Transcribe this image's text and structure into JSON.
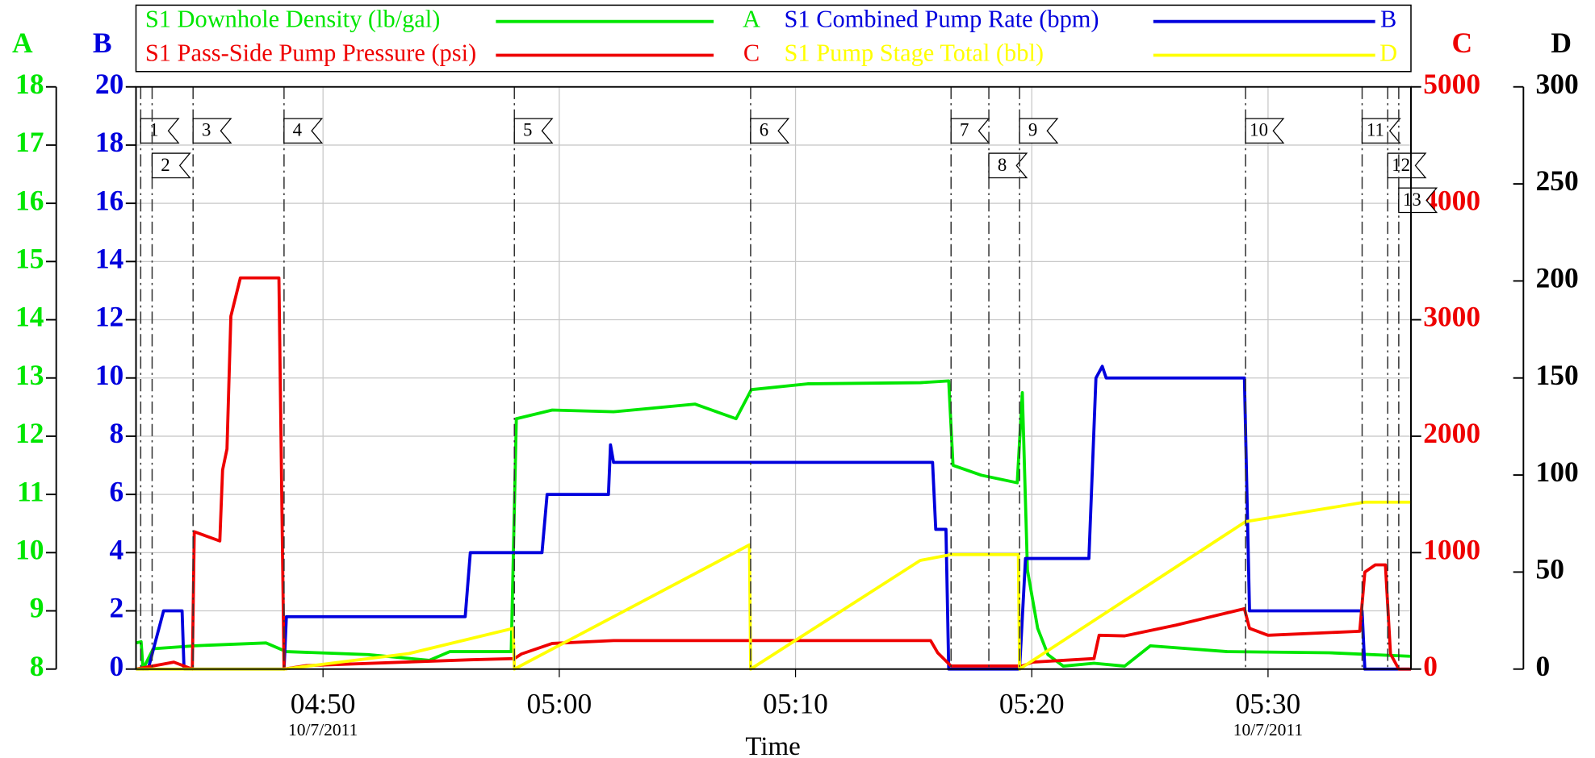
{
  "chart_data": {
    "type": "line",
    "xlabel": "Time",
    "xlim": [
      "04:42:05",
      "05:36:03"
    ],
    "xticks": [
      "04:50",
      "05:00",
      "05:10",
      "05:20",
      "05:30"
    ],
    "xtick_sublabels": [
      {
        "value": "04:50",
        "label": "10/7/2011"
      },
      {
        "value": "05:30",
        "label": "10/7/2011"
      }
    ],
    "grid": true,
    "axes": [
      {
        "name": "A",
        "color": "#00e600",
        "side": "left",
        "ylim": [
          8,
          18
        ],
        "yticks": [
          8,
          9,
          10,
          11,
          12,
          13,
          14,
          15,
          16,
          17,
          18
        ]
      },
      {
        "name": "B",
        "color": "#0000dd",
        "side": "left",
        "ylim": [
          0,
          20
        ],
        "yticks": [
          0,
          2,
          4,
          6,
          8,
          10,
          12,
          14,
          16,
          18,
          20
        ]
      },
      {
        "name": "C",
        "color": "#ee0000",
        "side": "right",
        "ylim": [
          0,
          5000
        ],
        "yticks": [
          0,
          1000,
          2000,
          3000,
          4000,
          5000
        ]
      },
      {
        "name": "D",
        "color": "#000000",
        "side": "right",
        "ylim": [
          0,
          300
        ],
        "yticks": [
          0,
          50,
          100,
          150,
          200,
          250,
          300
        ]
      }
    ],
    "series": [
      {
        "name": "S1 Downhole Density (lb/gal)",
        "color": "#00e600",
        "axis": "A",
        "x": [
          "04:42:05",
          "04:42:18",
          "04:42:23",
          "04:42:49",
          "04:44:33",
          "04:47:35",
          "04:48:27",
          "04:51:54",
          "04:54:30",
          "04:55:22",
          "04:57:58",
          "04:58:11",
          "04:59:42",
          "05:02:18",
          "05:05:45",
          "05:07:29",
          "05:08:08",
          "05:10:31",
          "05:15:17",
          "05:16:29",
          "05:16:40",
          "05:17:52",
          "05:19:23",
          "05:19:36",
          "05:19:49",
          "05:20:15",
          "05:20:41",
          "05:21:20",
          "05:22:38",
          "05:23:56",
          "05:25:01",
          "05:28:16",
          "05:32:35",
          "05:36:03"
        ],
        "values": [
          8.45,
          8.47,
          8.0,
          8.35,
          8.4,
          8.45,
          8.3,
          8.25,
          8.15,
          8.3,
          8.3,
          12.3,
          12.45,
          12.42,
          12.55,
          12.3,
          12.8,
          12.9,
          12.92,
          12.95,
          11.5,
          11.33,
          11.2,
          12.75,
          9.7,
          8.7,
          8.25,
          8.05,
          8.1,
          8.05,
          8.4,
          8.3,
          8.28,
          8.22
        ]
      },
      {
        "name": "S1 Combined Pump Rate (bpm)",
        "color": "#0000dd",
        "axis": "B",
        "x": [
          "04:42:05",
          "04:42:36",
          "04:43:15",
          "04:44:02",
          "04:44:07",
          "04:48:21",
          "04:48:27",
          "04:56:01",
          "04:56:14",
          "04:59:16",
          "04:59:29",
          "05:02:05",
          "05:02:10",
          "05:02:18",
          "05:15:48",
          "05:15:56",
          "05:16:22",
          "05:16:29",
          "05:19:29",
          "05:19:44",
          "05:22:25",
          "05:22:43",
          "05:22:59",
          "05:23:09",
          "05:29:00",
          "05:29:13",
          "05:33:59",
          "05:34:06",
          "05:36:03"
        ],
        "values": [
          0,
          0,
          2,
          2,
          0,
          0,
          1.8,
          1.8,
          4,
          4,
          6,
          6,
          7.7,
          7.1,
          7.1,
          4.8,
          4.8,
          0,
          0,
          3.8,
          3.8,
          10,
          10.4,
          10,
          10,
          2,
          2,
          0,
          0
        ]
      },
      {
        "name": "S1 Pass-Side Pump Pressure (psi)",
        "color": "#ee0000",
        "axis": "C",
        "x": [
          "04:42:05",
          "04:43:41",
          "04:44:28",
          "04:44:33",
          "04:45:38",
          "04:45:45",
          "04:45:56",
          "04:46:06",
          "04:46:30",
          "04:48:08",
          "04:48:21",
          "04:49:18",
          "04:56:14",
          "04:58:06",
          "04:58:24",
          "04:59:42",
          "05:02:18",
          "05:15:43",
          "05:16:01",
          "05:16:35",
          "05:19:36",
          "05:20:02",
          "05:22:38",
          "05:22:51",
          "05:23:56",
          "05:26:06",
          "05:29:00",
          "05:29:13",
          "05:30:00",
          "05:33:53",
          "05:34:06",
          "05:34:32",
          "05:34:58",
          "05:35:11",
          "05:35:32",
          "05:36:03"
        ],
        "values": [
          0,
          60,
          0,
          1180,
          1100,
          1710,
          1890,
          3030,
          3360,
          3360,
          0,
          30,
          80,
          90,
          130,
          220,
          245,
          245,
          140,
          26,
          26,
          60,
          90,
          290,
          285,
          377,
          518,
          350,
          290,
          325,
          833,
          895,
          895,
          130,
          0,
          0
        ]
      },
      {
        "name": "S1 Pump Stage Total (bbl)",
        "color": "#ffff00",
        "axis": "D",
        "x": [
          "04:42:05",
          "04:48:21",
          "04:53:38",
          "04:58:03",
          "04:58:06",
          "05:08:03",
          "05:08:06",
          "05:15:17",
          "05:16:35",
          "05:19:26",
          "05:19:29",
          "05:29:03",
          "05:34:06",
          "05:36:03"
        ],
        "values": [
          0,
          0,
          8,
          21,
          0,
          64,
          0,
          56,
          59,
          59,
          0,
          76,
          86,
          86
        ]
      }
    ],
    "events": [
      {
        "label": "1",
        "time": "04:42:17"
      },
      {
        "label": "2",
        "time": "04:42:46"
      },
      {
        "label": "3",
        "time": "04:44:30"
      },
      {
        "label": "4",
        "time": "04:48:21"
      },
      {
        "label": "5",
        "time": "04:58:06"
      },
      {
        "label": "6",
        "time": "05:08:06"
      },
      {
        "label": "7",
        "time": "05:16:35"
      },
      {
        "label": "8",
        "time": "05:18:11"
      },
      {
        "label": "9",
        "time": "05:19:29"
      },
      {
        "label": "10",
        "time": "05:29:03"
      },
      {
        "label": "11",
        "time": "05:33:59"
      },
      {
        "label": "12",
        "time": "05:35:04"
      },
      {
        "label": "13",
        "time": "05:35:32"
      }
    ]
  }
}
